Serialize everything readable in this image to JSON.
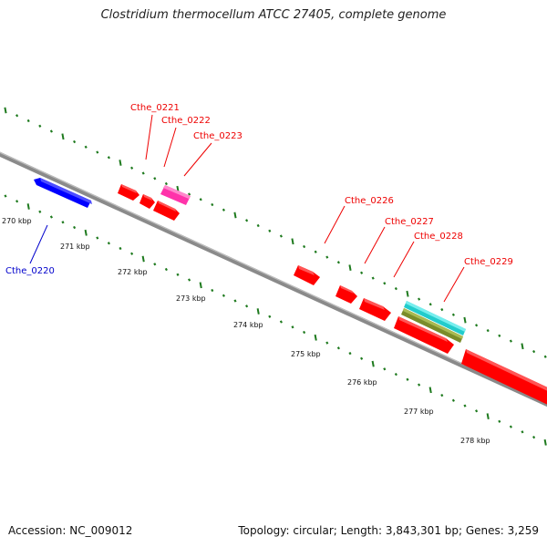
{
  "title": "Clostridium thermocellum ATCC 27405, complete genome",
  "accession": "Accession: NC_009012",
  "summary": "Topology: circular; Length: 3,843,301 bp; Genes: 3,259",
  "colors": {
    "backbone": "#8a8a8a",
    "tick": "#1e7a1e",
    "forward_gene": "#ff0000",
    "reverse_gene": "#0000ff",
    "pink_feature": "#ff33aa",
    "cyan_feature": "#22cccc",
    "olive_feature": "#7a8c2a",
    "red_label": "#ee0000",
    "blue_label": "#0000cc"
  },
  "kbp_labels": [
    "270 kbp",
    "271 kbp",
    "272 kbp",
    "273 kbp",
    "274 kbp",
    "275 kbp",
    "276 kbp",
    "277 kbp",
    "278 kbp"
  ],
  "gene_labels": [
    {
      "name": "Cthe_0220",
      "strand": "reverse"
    },
    {
      "name": "Cthe_0221",
      "strand": "forward"
    },
    {
      "name": "Cthe_0222",
      "strand": "forward"
    },
    {
      "name": "Cthe_0223",
      "strand": "forward"
    },
    {
      "name": "Cthe_0226",
      "strand": "forward"
    },
    {
      "name": "Cthe_0227",
      "strand": "forward"
    },
    {
      "name": "Cthe_0228",
      "strand": "forward"
    },
    {
      "name": "Cthe_0229",
      "strand": "forward"
    }
  ]
}
